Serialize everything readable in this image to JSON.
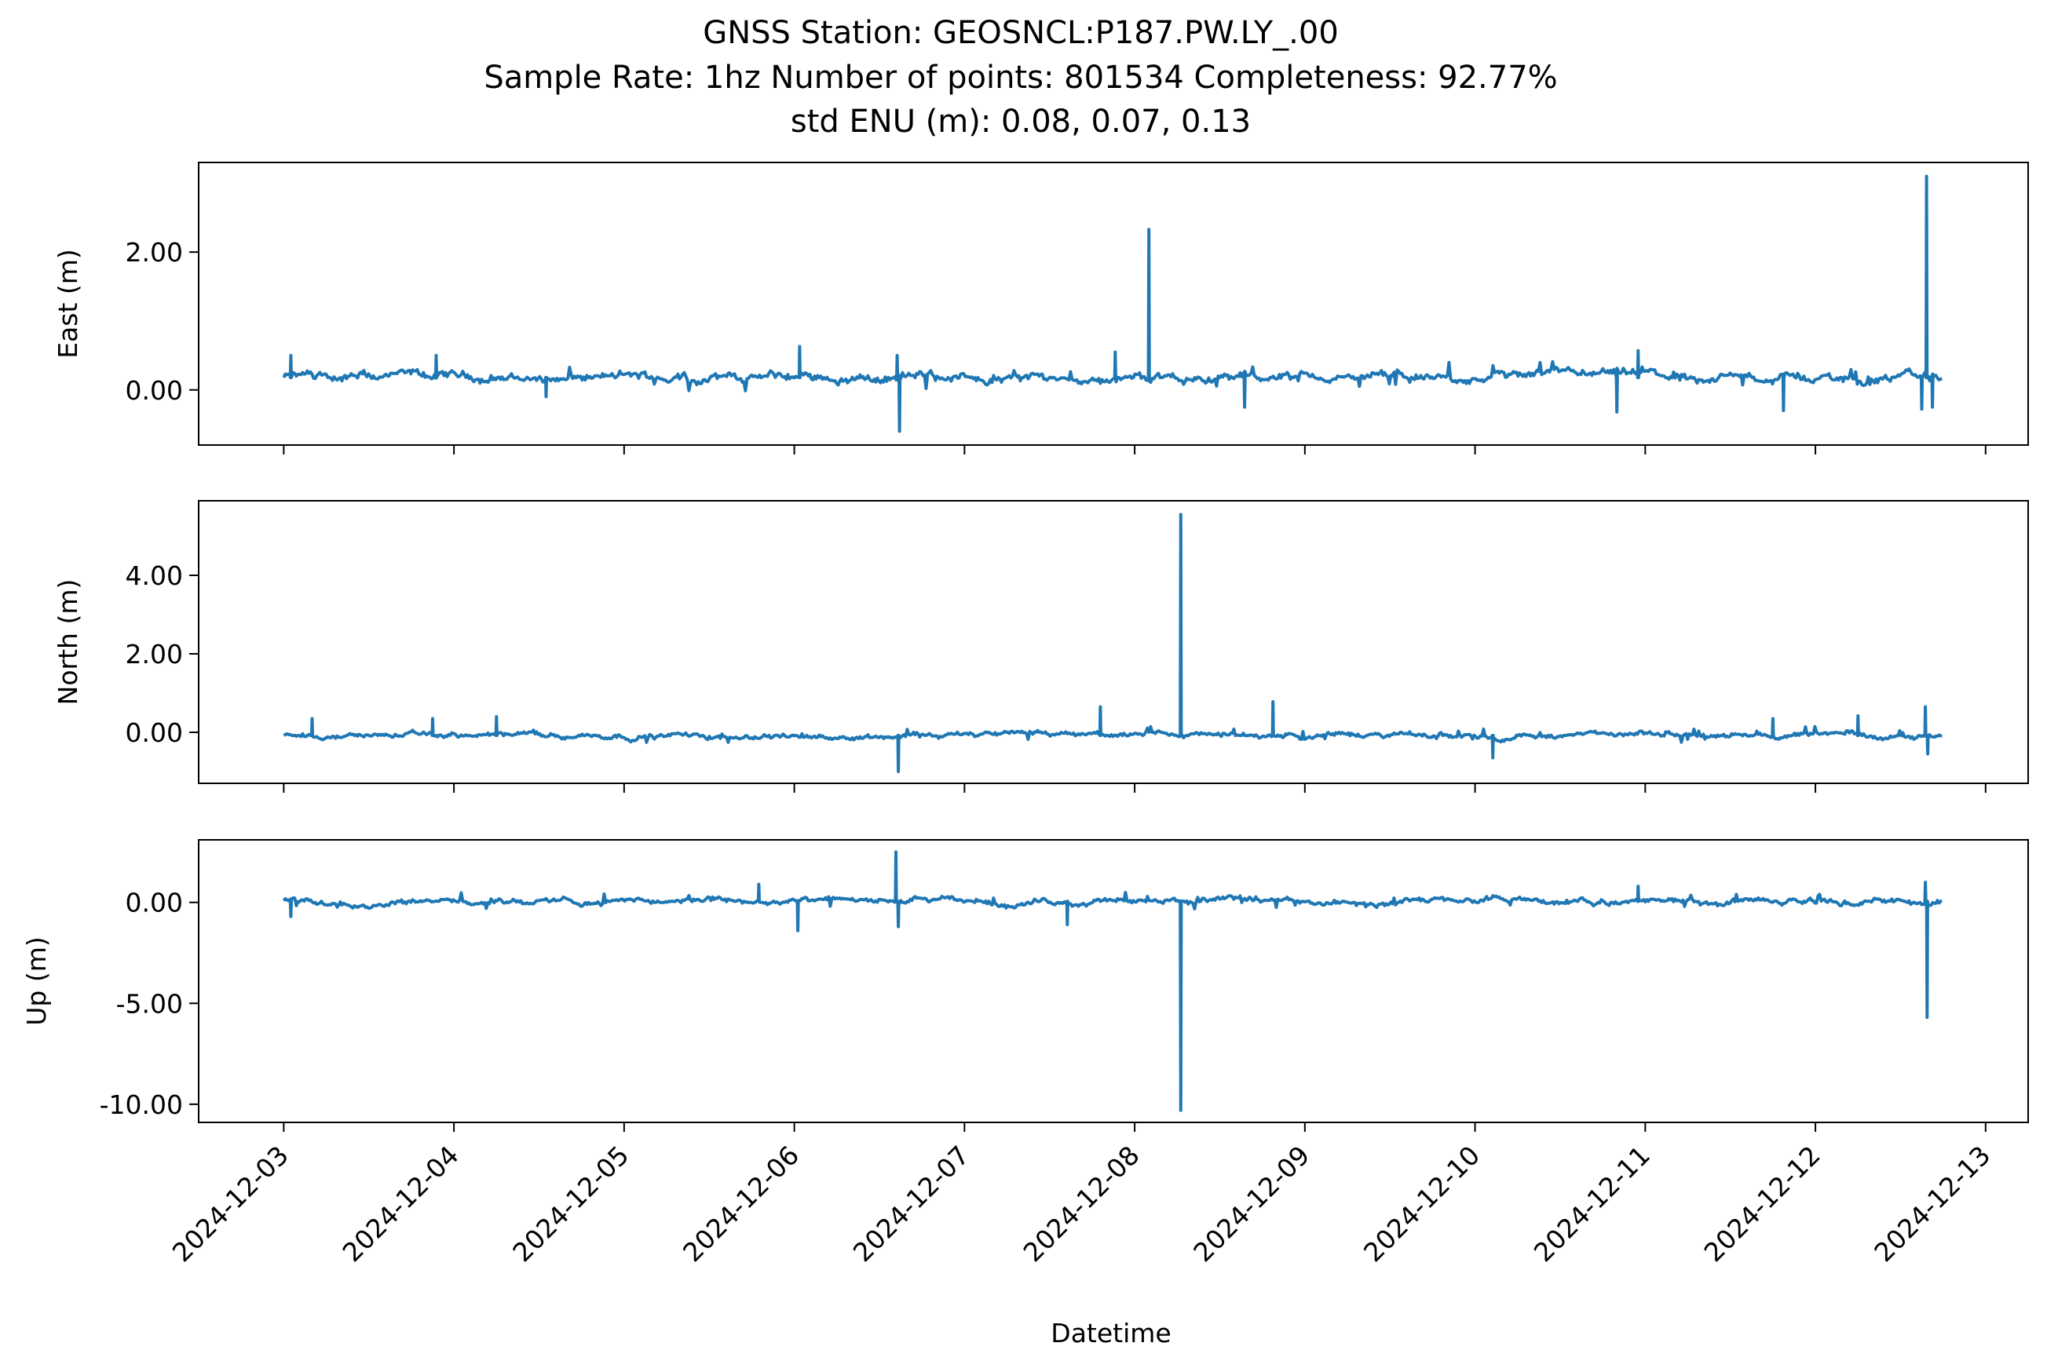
{
  "chart_data": {
    "type": "line",
    "title": [
      "GNSS Station: GEOSNCL:P187.PW.LY_.00",
      "Sample Rate: 1hz   Number of points: 801534    Completeness:  92.77%",
      "std ENU (m):  0.08, 0.07, 0.13"
    ],
    "xlabel": "Datetime",
    "x_ticks": [
      "2024-12-03",
      "2024-12-04",
      "2024-12-05",
      "2024-12-06",
      "2024-12-07",
      "2024-12-08",
      "2024-12-09",
      "2024-12-10",
      "2024-12-11",
      "2024-12-12",
      "2024-12-13"
    ],
    "x_range": [
      "2024-12-02T12:00",
      "2024-12-13T06:00"
    ],
    "x_data_range": [
      "2024-12-03T00:00",
      "2024-12-12T18:00"
    ],
    "series_color": "#1f77b4",
    "grid": false,
    "panels": [
      {
        "name": "east",
        "ylabel": "East (m)",
        "ylim": [
          -0.8,
          3.3
        ],
        "y_ticks": [
          0.0,
          2.0
        ],
        "y_tick_labels": [
          "0.00",
          "2.00"
        ],
        "baseline": 0.18,
        "noise": 0.07,
        "spikes": [
          {
            "x": "2024-12-03T01:00",
            "y": 0.5
          },
          {
            "x": "2024-12-03T21:30",
            "y": 0.5
          },
          {
            "x": "2024-12-04T13:00",
            "y": -0.1
          },
          {
            "x": "2024-12-06T00:45",
            "y": 0.63
          },
          {
            "x": "2024-12-06T14:30",
            "y": 0.5
          },
          {
            "x": "2024-12-06T14:50",
            "y": -0.6
          },
          {
            "x": "2024-12-07T21:15",
            "y": 0.55
          },
          {
            "x": "2024-12-08T02:00",
            "y": 2.33
          },
          {
            "x": "2024-12-08T15:30",
            "y": -0.25
          },
          {
            "x": "2024-12-10T20:00",
            "y": -0.32
          },
          {
            "x": "2024-12-10T23:00",
            "y": 0.57
          },
          {
            "x": "2024-12-11T19:30",
            "y": -0.3
          },
          {
            "x": "2024-12-12T15:00",
            "y": -0.28
          },
          {
            "x": "2024-12-12T15:40",
            "y": 3.1
          },
          {
            "x": "2024-12-12T16:30",
            "y": -0.25
          }
        ]
      },
      {
        "name": "north",
        "ylabel": "North (m)",
        "ylim": [
          -1.3,
          5.9
        ],
        "y_ticks": [
          0.0,
          2.0,
          4.0
        ],
        "y_tick_labels": [
          "0.00",
          "2.00",
          "4.00"
        ],
        "baseline": -0.08,
        "noise": 0.07,
        "spikes": [
          {
            "x": "2024-12-03T04:00",
            "y": 0.35
          },
          {
            "x": "2024-12-03T21:00",
            "y": 0.35
          },
          {
            "x": "2024-12-04T06:00",
            "y": 0.4
          },
          {
            "x": "2024-12-06T14:40",
            "y": -1.0
          },
          {
            "x": "2024-12-07T19:10",
            "y": 0.65
          },
          {
            "x": "2024-12-08T06:30",
            "y": 5.55
          },
          {
            "x": "2024-12-08T19:30",
            "y": 0.78
          },
          {
            "x": "2024-12-10T02:30",
            "y": -0.65
          },
          {
            "x": "2024-12-11T18:00",
            "y": 0.35
          },
          {
            "x": "2024-12-12T06:00",
            "y": 0.42
          },
          {
            "x": "2024-12-12T15:30",
            "y": 0.65
          },
          {
            "x": "2024-12-12T15:50",
            "y": -0.55
          }
        ]
      },
      {
        "name": "up",
        "ylabel": "Up (m)",
        "ylim": [
          -10.9,
          3.1
        ],
        "y_ticks": [
          0.0,
          -5.0,
          -10.0
        ],
        "y_tick_labels": [
          "0.00",
          "-5.00",
          "-10.00"
        ],
        "baseline": 0.05,
        "noise": 0.15,
        "spikes": [
          {
            "x": "2024-12-03T01:00",
            "y": -0.7
          },
          {
            "x": "2024-12-05T19:00",
            "y": 0.9
          },
          {
            "x": "2024-12-06T00:30",
            "y": -1.4
          },
          {
            "x": "2024-12-06T14:20",
            "y": 2.5
          },
          {
            "x": "2024-12-06T14:40",
            "y": -1.2
          },
          {
            "x": "2024-12-07T14:30",
            "y": -1.1
          },
          {
            "x": "2024-12-08T06:30",
            "y": -10.3
          },
          {
            "x": "2024-12-10T23:00",
            "y": 0.8
          },
          {
            "x": "2024-12-12T15:30",
            "y": 1.0
          },
          {
            "x": "2024-12-12T15:45",
            "y": -5.7
          }
        ]
      }
    ]
  }
}
